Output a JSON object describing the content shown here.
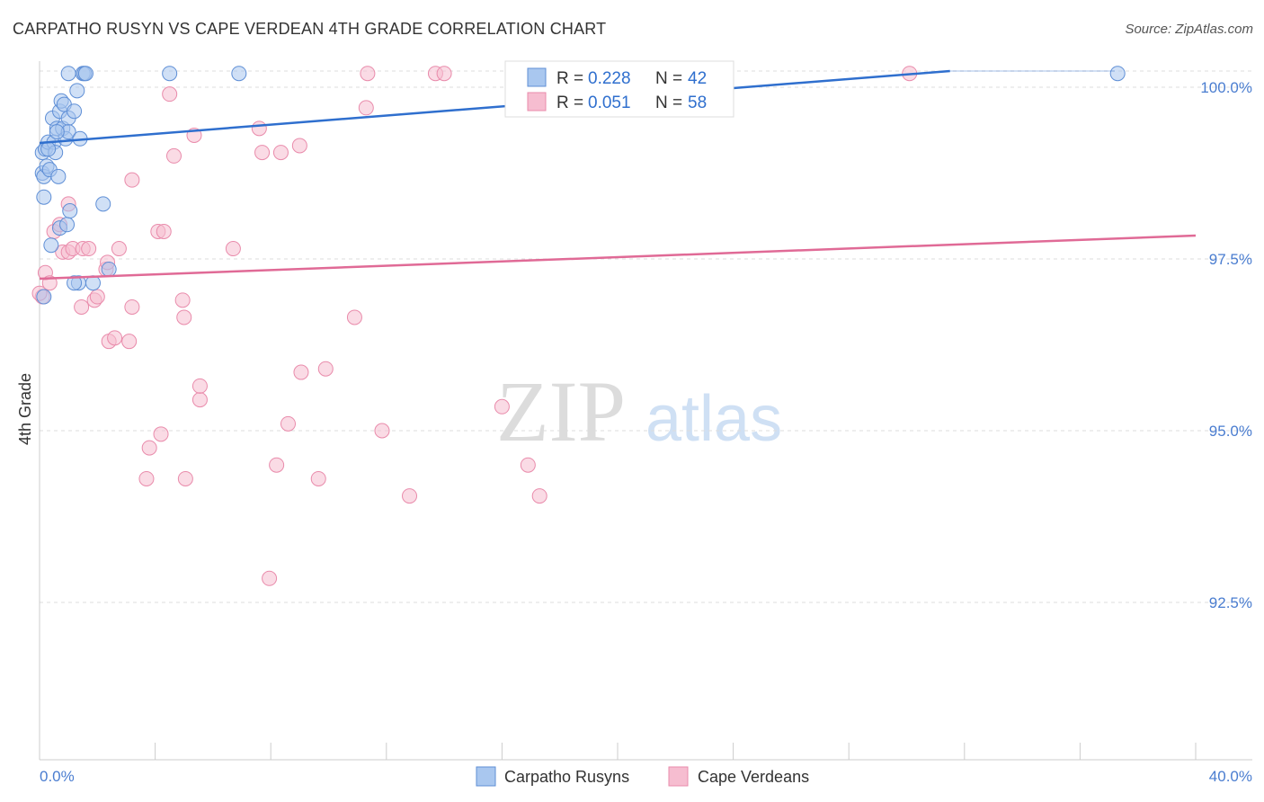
{
  "title": "CARPATHO RUSYN VS CAPE VERDEAN 4TH GRADE CORRELATION CHART",
  "source": "Source: ZipAtlas.com",
  "watermark": {
    "zip": "ZIP",
    "atlas": "atlas"
  },
  "colors": {
    "blue_fill": "#a9c7ef",
    "blue_stroke": "#5f8fd6",
    "blue_line": "#2f6fce",
    "pink_fill": "#f6bdd0",
    "pink_stroke": "#e98bab",
    "pink_line": "#e06a96",
    "tick_text": "#4a7dd0",
    "grid": "#dddddd"
  },
  "chart_data": {
    "type": "scatter",
    "title": "CARPATHO RUSYN VS CAPE VERDEAN 4TH GRADE CORRELATION CHART",
    "xlabel": "",
    "ylabel": "4th Grade",
    "xlim": [
      0,
      40
    ],
    "ylim": [
      90.0,
      100.4
    ],
    "x_tick_labels": [
      "0.0%",
      "40.0%"
    ],
    "y_ticks": [
      {
        "value": 100.0,
        "label": "100.0%"
      },
      {
        "value": 97.5,
        "label": "97.5%"
      },
      {
        "value": 95.0,
        "label": "95.0%"
      },
      {
        "value": 92.5,
        "label": "92.5%"
      }
    ],
    "legend": {
      "entries": [
        {
          "r_label": "R =",
          "r_value": "0.228",
          "n_label": "N =",
          "n_value": "42"
        },
        {
          "r_label": "R =",
          "r_value": "0.051",
          "n_label": "N =",
          "n_value": "58"
        }
      ]
    },
    "series": [
      {
        "name": "Carpatho Rusyns",
        "color": "blue",
        "trend": {
          "x": [
            0,
            31.5
          ],
          "y": [
            98.95,
            100.0
          ]
        },
        "points": [
          [
            0.1,
            99.05
          ],
          [
            0.1,
            98.75
          ],
          [
            0.15,
            98.7
          ],
          [
            0.15,
            98.4
          ],
          [
            0.15,
            96.95
          ],
          [
            0.2,
            99.1
          ],
          [
            0.25,
            98.85
          ],
          [
            0.3,
            99.2
          ],
          [
            0.35,
            98.8
          ],
          [
            0.4,
            97.7
          ],
          [
            0.45,
            99.55
          ],
          [
            0.5,
            99.2
          ],
          [
            0.55,
            99.05
          ],
          [
            0.6,
            99.4
          ],
          [
            0.65,
            98.7
          ],
          [
            0.7,
            99.65
          ],
          [
            0.7,
            97.95
          ],
          [
            0.75,
            99.8
          ],
          [
            0.8,
            99.4
          ],
          [
            0.85,
            99.75
          ],
          [
            0.9,
            99.25
          ],
          [
            0.95,
            98.0
          ],
          [
            1.0,
            99.55
          ],
          [
            1.05,
            98.2
          ],
          [
            1.0,
            99.35
          ],
          [
            1.0,
            100.2
          ],
          [
            1.2,
            99.65
          ],
          [
            1.3,
            99.95
          ],
          [
            1.4,
            99.25
          ],
          [
            1.5,
            100.2
          ],
          [
            1.55,
            100.2
          ],
          [
            1.6,
            100.2
          ],
          [
            1.35,
            97.15
          ],
          [
            1.85,
            97.15
          ],
          [
            2.2,
            98.3
          ],
          [
            2.4,
            97.35
          ],
          [
            4.5,
            100.2
          ],
          [
            6.9,
            100.2
          ],
          [
            1.2,
            97.15
          ],
          [
            0.3,
            99.1
          ],
          [
            37.3,
            100.2
          ],
          [
            0.6,
            99.35
          ]
        ]
      },
      {
        "name": "Cape Verdeans",
        "color": "pink",
        "trend": {
          "x": [
            0,
            40
          ],
          "y": [
            96.95,
            97.6
          ]
        },
        "points": [
          [
            0.1,
            96.95
          ],
          [
            0.2,
            97.3
          ],
          [
            0.35,
            97.15
          ],
          [
            0.5,
            97.9
          ],
          [
            0.7,
            98.0
          ],
          [
            0.8,
            97.6
          ],
          [
            1.0,
            98.3
          ],
          [
            1.0,
            97.6
          ],
          [
            1.15,
            97.65
          ],
          [
            1.5,
            97.65
          ],
          [
            1.7,
            97.65
          ],
          [
            1.45,
            96.8
          ],
          [
            1.9,
            96.9
          ],
          [
            2.0,
            96.95
          ],
          [
            2.3,
            97.35
          ],
          [
            2.35,
            97.45
          ],
          [
            2.4,
            96.3
          ],
          [
            2.6,
            96.35
          ],
          [
            2.75,
            97.65
          ],
          [
            3.1,
            96.3
          ],
          [
            3.2,
            98.65
          ],
          [
            3.2,
            96.8
          ],
          [
            3.7,
            94.3
          ],
          [
            3.8,
            94.75
          ],
          [
            4.1,
            97.9
          ],
          [
            4.3,
            97.9
          ],
          [
            4.2,
            94.95
          ],
          [
            4.5,
            99.9
          ],
          [
            4.65,
            99.0
          ],
          [
            4.95,
            96.9
          ],
          [
            5.0,
            96.65
          ],
          [
            5.05,
            94.3
          ],
          [
            5.35,
            99.3
          ],
          [
            5.55,
            95.45
          ],
          [
            5.55,
            95.65
          ],
          [
            6.7,
            97.65
          ],
          [
            7.6,
            99.4
          ],
          [
            7.7,
            99.05
          ],
          [
            7.95,
            92.85
          ],
          [
            8.2,
            94.5
          ],
          [
            8.35,
            99.05
          ],
          [
            8.6,
            95.1
          ],
          [
            9.0,
            99.15
          ],
          [
            9.05,
            95.85
          ],
          [
            9.65,
            94.3
          ],
          [
            9.9,
            95.9
          ],
          [
            10.9,
            96.65
          ],
          [
            11.3,
            99.7
          ],
          [
            11.35,
            100.2
          ],
          [
            11.85,
            95.0
          ],
          [
            12.8,
            94.05
          ],
          [
            13.7,
            100.2
          ],
          [
            14.0,
            100.2
          ],
          [
            16.0,
            95.35
          ],
          [
            16.9,
            94.5
          ],
          [
            17.3,
            94.05
          ],
          [
            30.1,
            100.2
          ],
          [
            0.0,
            97.0
          ]
        ]
      }
    ]
  }
}
